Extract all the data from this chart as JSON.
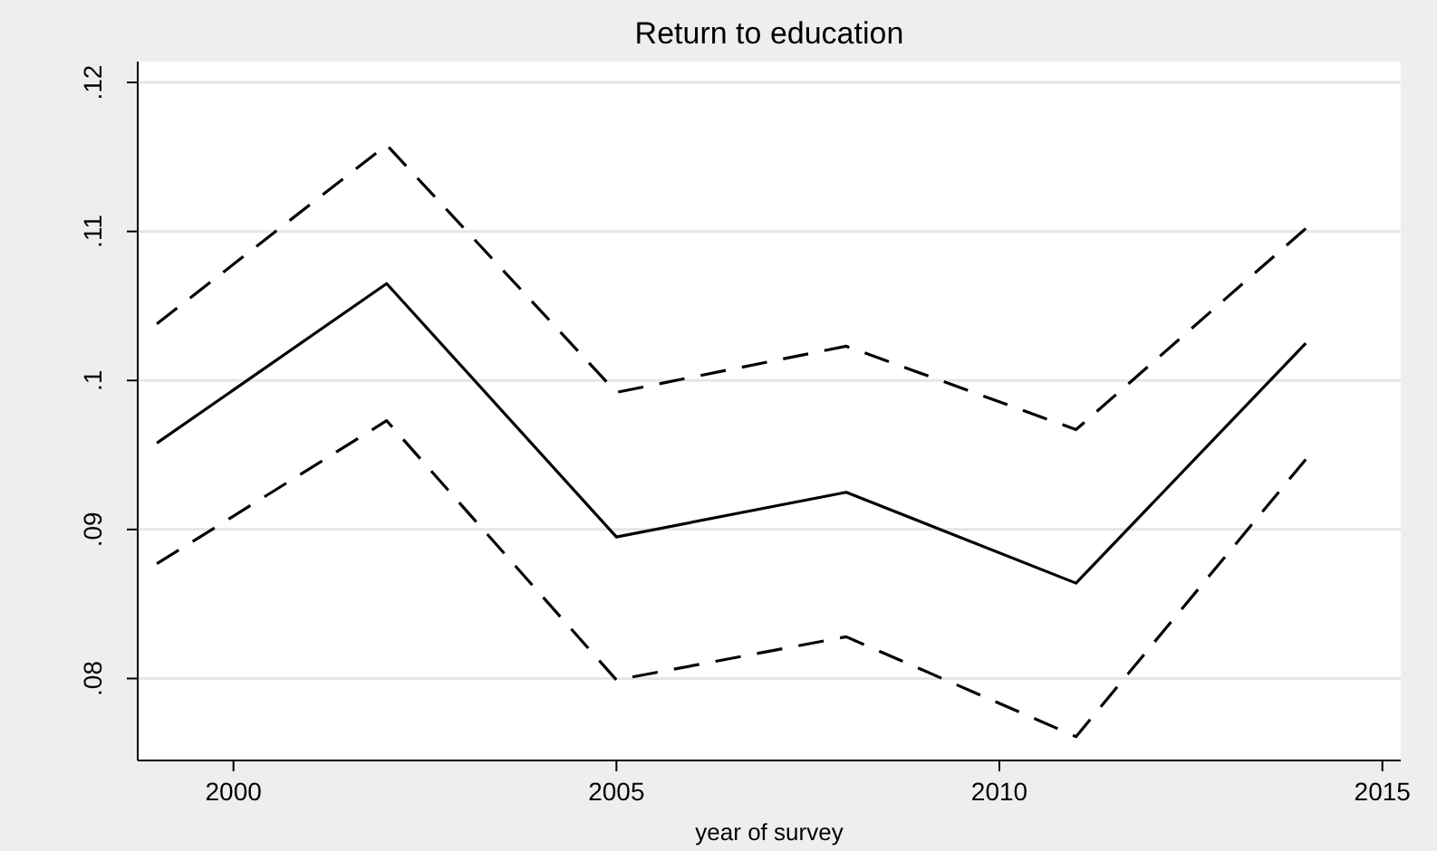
{
  "chart_data": {
    "type": "line",
    "title": "Return to education",
    "xlabel": "year of survey",
    "x": [
      1999,
      2002,
      2005,
      2008,
      2011,
      2014
    ],
    "series": [
      {
        "color": "#000000",
        "line_style": "solid",
        "values": [
          0.0958,
          0.1065,
          0.0895,
          0.0925,
          0.0864,
          0.1025
        ]
      },
      {
        "color": "#000000",
        "line_style": "dashed",
        "values": [
          0.1038,
          0.1158,
          0.0992,
          0.1023,
          0.0967,
          0.1102
        ]
      },
      {
        "color": "#000000",
        "line_style": "dashed",
        "values": [
          0.0877,
          0.0973,
          0.0799,
          0.0828,
          0.0761,
          0.0947
        ]
      }
    ],
    "xlim": [
      1998.75,
      2015.24
    ],
    "xticks": [
      2000,
      2005,
      2010,
      2015
    ],
    "ylim": [
      0.0745,
      0.1214
    ],
    "yticks": [
      {
        "value": 0.08,
        "label": ".08"
      },
      {
        "value": 0.09,
        "label": ".09"
      },
      {
        "value": 0.1,
        "label": ".1"
      },
      {
        "value": 0.11,
        "label": ".11"
      },
      {
        "value": 0.12,
        "label": ".12"
      }
    ],
    "grid": "y",
    "marker": "none"
  }
}
